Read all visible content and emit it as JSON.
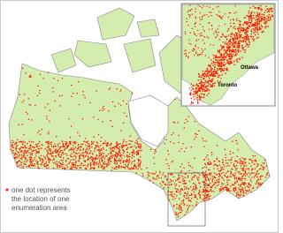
{
  "legend": {
    "lines": [
      "one dot represents",
      "the location of one",
      "enumeration area"
    ]
  },
  "inset": {
    "labels": [
      "Ottawa",
      "Toronto"
    ]
  }
}
